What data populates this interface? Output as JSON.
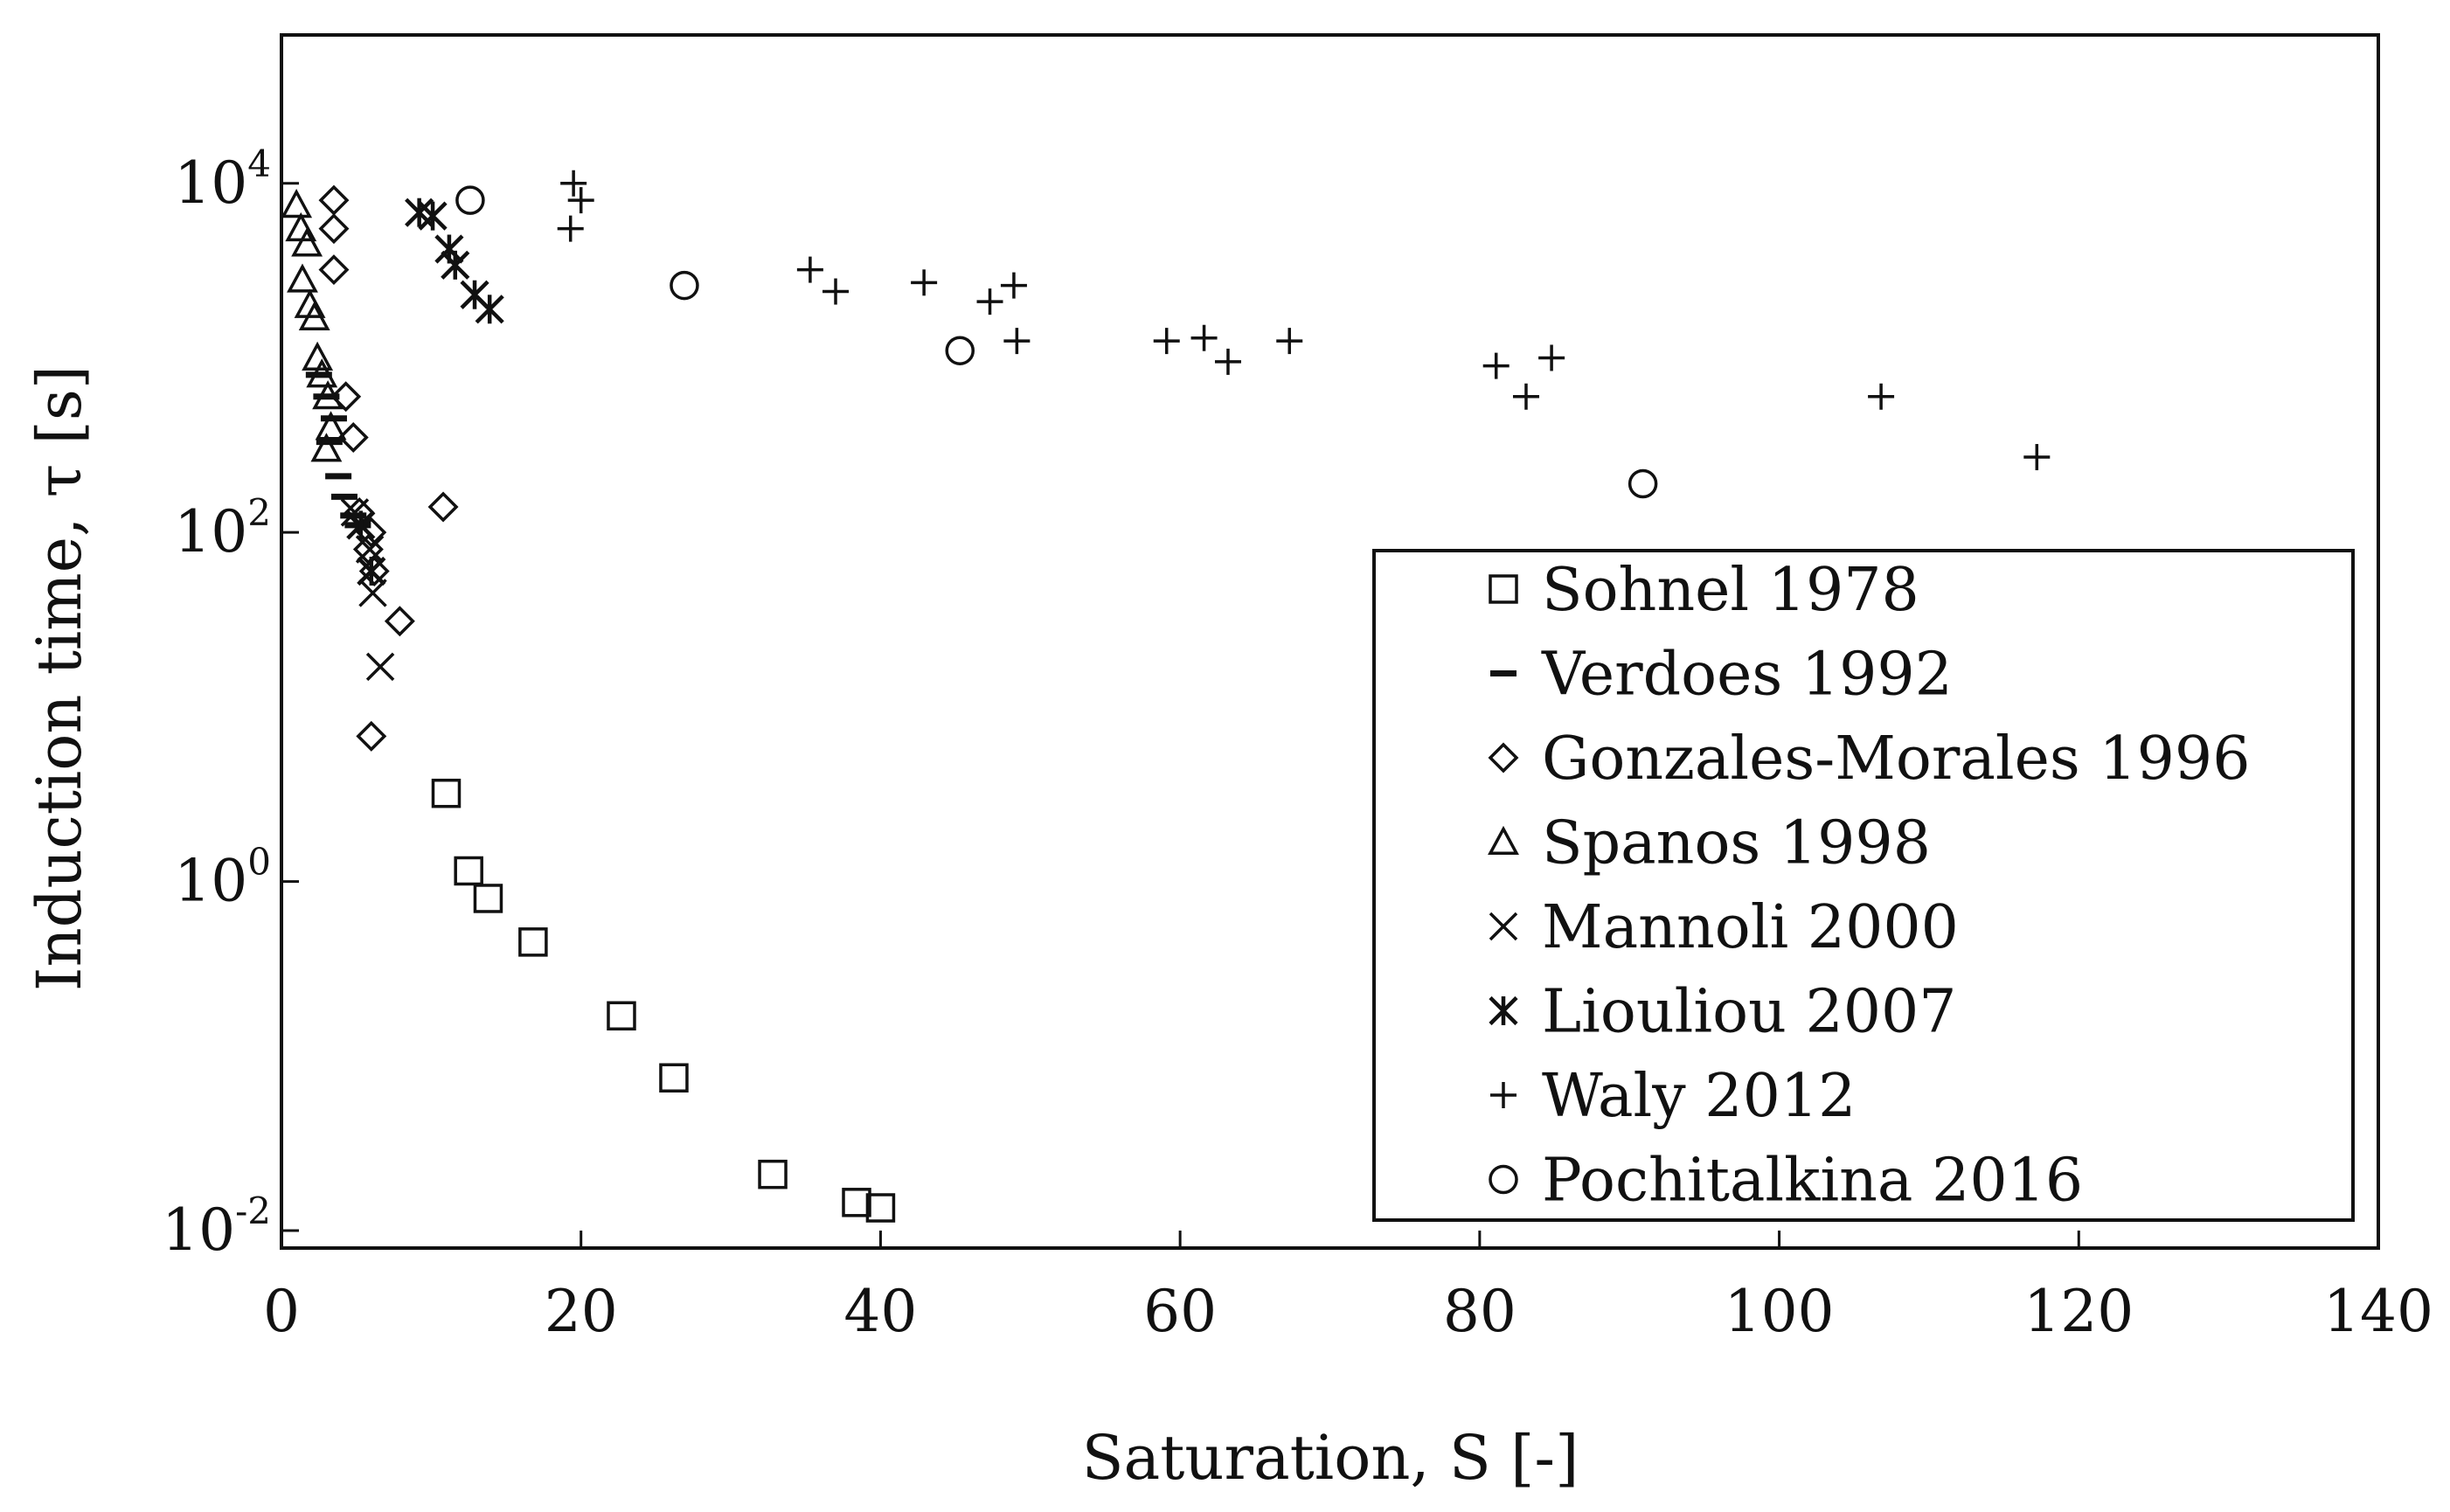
{
  "chart_data": {
    "type": "scatter",
    "title": "",
    "xlabel": "Saturation, S [-]",
    "ylabel": "Induction time, τ [s]",
    "xlim": [
      0,
      140
    ],
    "ylim_log10": [
      -2.1,
      4.85
    ],
    "yscale": "log",
    "x_ticks": [
      0,
      20,
      40,
      60,
      80,
      100,
      120,
      140
    ],
    "y_ticks": [
      {
        "base": "10",
        "exp": "-2",
        "value": 0.01
      },
      {
        "base": "10",
        "exp": "0",
        "value": 1
      },
      {
        "base": "10",
        "exp": "2",
        "value": 100
      },
      {
        "base": "10",
        "exp": "4",
        "value": 10000
      }
    ],
    "grid": false,
    "legend_position": "lower-right",
    "series": [
      {
        "name": "Sohnel 1978",
        "marker": "square",
        "points": [
          [
            11,
            3.2
          ],
          [
            12.5,
            1.15
          ],
          [
            13.8,
            0.8
          ],
          [
            16.8,
            0.45
          ],
          [
            22.7,
            0.17
          ],
          [
            26.2,
            0.075
          ],
          [
            32.8,
            0.021
          ],
          [
            38.4,
            0.0145
          ],
          [
            40,
            0.0135
          ]
        ]
      },
      {
        "name": "Verdoes 1992",
        "marker": "dash",
        "points": [
          [
            2.5,
            800
          ],
          [
            3,
            600
          ],
          [
            3.5,
            450
          ],
          [
            3.2,
            330
          ],
          [
            3.8,
            210
          ],
          [
            4.2,
            160
          ],
          [
            4.8,
            125
          ],
          [
            5.1,
            110
          ]
        ]
      },
      {
        "name": "Gonzales-Morales 1996",
        "marker": "diamond",
        "points": [
          [
            3.5,
            8000
          ],
          [
            3.5,
            5500
          ],
          [
            3.5,
            3200
          ],
          [
            4.3,
            600
          ],
          [
            4.8,
            350
          ],
          [
            5.2,
            130
          ],
          [
            6,
            100
          ],
          [
            5.8,
            80
          ],
          [
            6.2,
            60
          ],
          [
            7.9,
            31
          ],
          [
            10.8,
            140
          ],
          [
            6,
            6.8
          ]
        ]
      },
      {
        "name": "Spanos 1998",
        "marker": "triangle",
        "points": [
          [
            1,
            7500
          ],
          [
            1.3,
            5500
          ],
          [
            1.7,
            4500
          ],
          [
            1.4,
            2800
          ],
          [
            1.9,
            2000
          ],
          [
            2.2,
            1700
          ],
          [
            2.4,
            1000
          ],
          [
            2.7,
            800
          ],
          [
            3.1,
            600
          ],
          [
            3.3,
            400
          ],
          [
            3,
            300
          ]
        ]
      },
      {
        "name": "Mannoli 2000",
        "marker": "x",
        "points": [
          [
            4.9,
            130
          ],
          [
            5.9,
            80
          ],
          [
            6.1,
            45
          ],
          [
            6.6,
            17
          ]
        ]
      },
      {
        "name": "LioulIou 2007",
        "marker": "asterisk",
        "points": [
          [
            9.2,
            6800
          ],
          [
            10.1,
            6500
          ],
          [
            11.2,
            4200
          ],
          [
            11.6,
            3400
          ],
          [
            12.9,
            2300
          ],
          [
            13.9,
            1900
          ],
          [
            5.3,
            110
          ],
          [
            6,
            60
          ]
        ]
      },
      {
        "name": "Waly 2012",
        "marker": "plus",
        "points": [
          [
            19.5,
            10000
          ],
          [
            20,
            8000
          ],
          [
            19.3,
            5500
          ],
          [
            35.3,
            3200
          ],
          [
            37,
            2400
          ],
          [
            42.9,
            2700
          ],
          [
            47.3,
            2100
          ],
          [
            48.9,
            2600
          ],
          [
            49.1,
            1250
          ],
          [
            59.1,
            1250
          ],
          [
            61.6,
            1300
          ],
          [
            63.2,
            950
          ],
          [
            67.3,
            1250
          ],
          [
            81.1,
            900
          ],
          [
            83.1,
            600
          ],
          [
            84.8,
            1000
          ],
          [
            106.8,
            600
          ],
          [
            117.2,
            270
          ]
        ]
      },
      {
        "name": "Pochitalkina 2016",
        "marker": "circle",
        "points": [
          [
            12.6,
            8000
          ],
          [
            26.9,
            2600
          ],
          [
            45.3,
            1100
          ],
          [
            90.9,
            190
          ]
        ]
      }
    ]
  },
  "legend": [
    {
      "label": "Sohnel 1978",
      "marker": "square"
    },
    {
      "label": "Verdoes 1992",
      "marker": "dash"
    },
    {
      "label": "Gonzales-Morales 1996",
      "marker": "diamond"
    },
    {
      "label": "Spanos 1998",
      "marker": "triangle"
    },
    {
      "label": "Mannoli 2000",
      "marker": "x"
    },
    {
      "label": "Liouliou 2007",
      "marker": "asterisk"
    },
    {
      "label": "Waly 2012",
      "marker": "plus"
    },
    {
      "label": "Pochitalkina 2016",
      "marker": "circle"
    }
  ],
  "colors": {
    "ink": "#111111",
    "background": "#ffffff"
  }
}
